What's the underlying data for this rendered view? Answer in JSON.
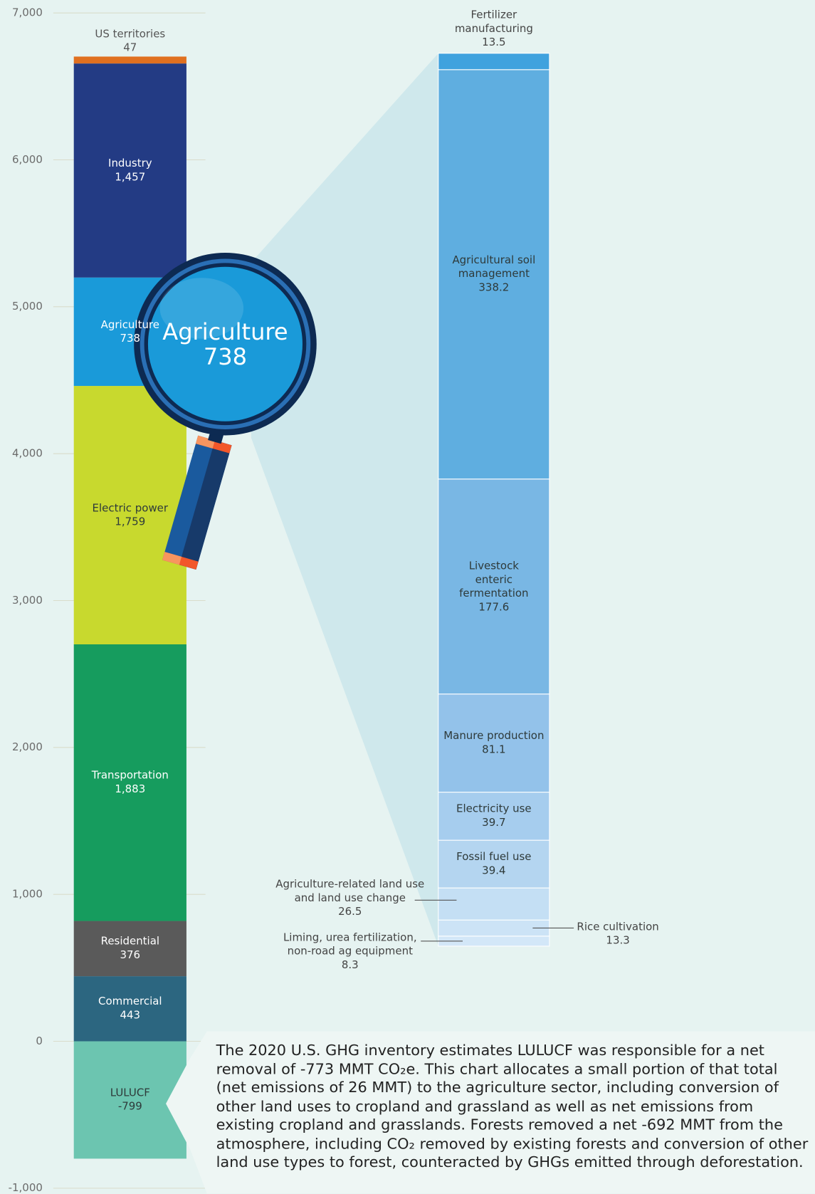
{
  "chart_data": [
    {
      "type": "bar",
      "categories": [
        "LULUCF",
        "Commercial",
        "Residential",
        "Transportation",
        "Electric power",
        "Agriculture",
        "Industry",
        "US territories"
      ],
      "values": [
        -799,
        443,
        376,
        1883,
        1759,
        738,
        1457,
        47
      ],
      "value_labels": [
        "-799",
        "443",
        "376",
        "1,883",
        "1,759",
        "738",
        "1,457",
        "47"
      ],
      "colors": [
        "#6cc5b0",
        "#2c6680",
        "#5a5a5a",
        "#169c5e",
        "#c8d92e",
        "#1a9ad9",
        "#233b84",
        "#e07020"
      ],
      "ylim": [
        -1000,
        7000
      ],
      "yticks": [
        {
          "value": -1000,
          "label": "-1,000"
        },
        0,
        {
          "value": 1000,
          "label": "1,000"
        },
        {
          "value": 2000,
          "label": "2,000"
        },
        {
          "value": 3000,
          "label": "3,000"
        },
        {
          "value": 4000,
          "label": "4,000"
        },
        {
          "value": 5000,
          "label": "5,000"
        },
        {
          "value": 6000,
          "label": "6,000"
        },
        {
          "value": 7000,
          "label": "7,000"
        }
      ],
      "grid": true,
      "annotation": "The 2020 U.S. GHG inventory estimates LULUCF was responsible for a net removal of -773 MMT CO₂e. This chart allocates a small portion of that total (net emissions of 26 MMT) to the agriculture sector, including conversion of other land uses to cropland and grassland as well as net emissions from existing cropland and grasslands. Forests removed a net -692 MMT from the atmosphere, including CO₂ removed by existing forests and conversion of other land use types to forest, counteracted by GHGs emitted through deforestation."
    },
    {
      "type": "bar",
      "categories": [
        "Liming, urea fertilization, non-road ag equipment",
        "Rice cultivation",
        "Agriculture-related land use and land use change",
        "Fossil fuel use",
        "Electricity use",
        "Manure production",
        "Livestock enteric fermentation",
        "Agricultural soil management",
        "Fertilizer manufacturing"
      ],
      "values": [
        8.3,
        13.3,
        26.5,
        39.4,
        39.7,
        81.1,
        177.6,
        338.2,
        13.5
      ],
      "colors": [
        "#d3e7f8",
        "#cce3f6",
        "#c4dff4",
        "#b4d5f0",
        "#a6cdee",
        "#93c2ea",
        "#79b7e4",
        "#5faee0",
        "#3fa2de"
      ]
    }
  ]
}
